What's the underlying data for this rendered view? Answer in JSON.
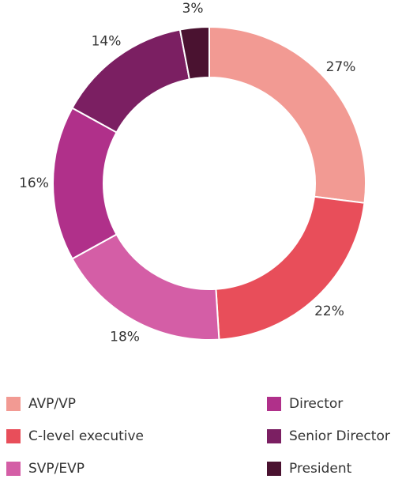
{
  "chart_data": {
    "type": "donut",
    "categories": [
      "AVP/VP",
      "C-level executive",
      "SVP/EVP",
      "Director",
      "Senior Director",
      "President"
    ],
    "values": [
      27,
      22,
      18,
      16,
      14,
      3
    ],
    "value_labels": [
      "27%",
      "22%",
      "18%",
      "16%",
      "14%",
      "3%"
    ],
    "colors": [
      "#f29a93",
      "#e84e5a",
      "#d45ea6",
      "#b0308a",
      "#7b1f62",
      "#4a1230"
    ],
    "legend": "bottom"
  }
}
